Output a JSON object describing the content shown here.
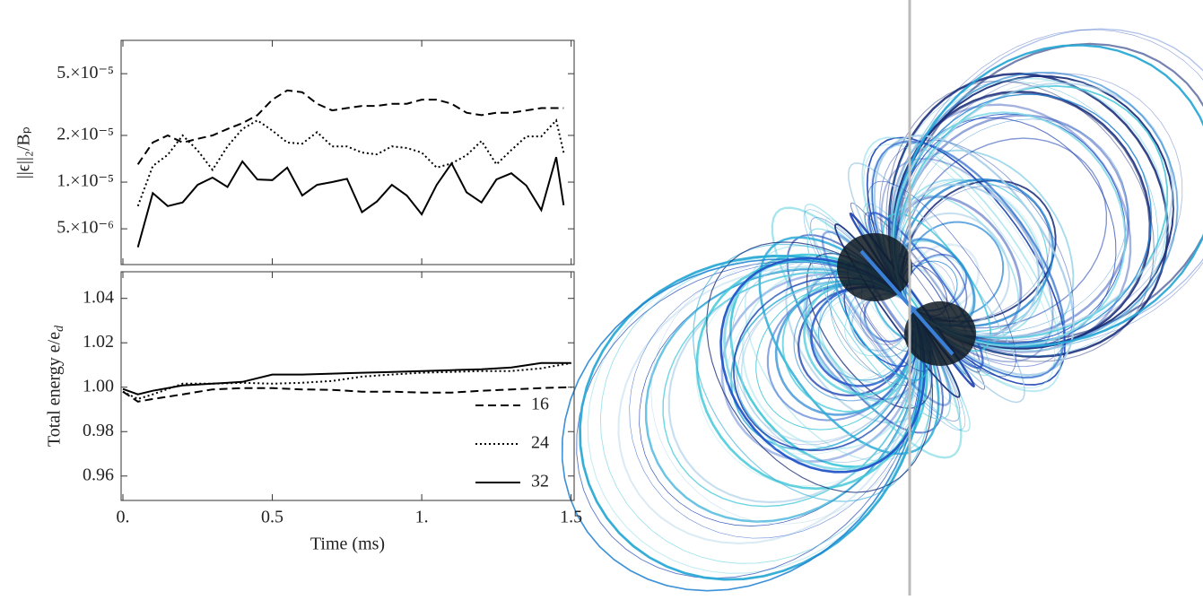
{
  "chart_data": [
    {
      "type": "line",
      "log_y": true,
      "y_label": "||ϵ||₂/Bₚ",
      "x": [
        0.05,
        0.1,
        0.15,
        0.2,
        0.25,
        0.3,
        0.35,
        0.4,
        0.45,
        0.5,
        0.55,
        0.6,
        0.65,
        0.7,
        0.75,
        0.8,
        0.85,
        0.9,
        0.95,
        1.0,
        1.05,
        1.1,
        1.15,
        1.2,
        1.25,
        1.3,
        1.35,
        1.4,
        1.45,
        1.475
      ],
      "xlim": [
        -0.006,
        1.51
      ],
      "ylim": [
        2.94e-06,
        8.2e-05
      ],
      "yticks": [
        {
          "value": 5e-06,
          "label": "5.×10⁻⁶"
        },
        {
          "value": 1e-05,
          "label": "1.×10⁻⁵"
        },
        {
          "value": 2e-05,
          "label": "2.×10⁻⁵"
        },
        {
          "value": 5e-05,
          "label": "5.×10⁻⁵"
        }
      ],
      "series": [
        {
          "dash": "dashed",
          "color": "#000000",
          "values": [
            1.3e-05,
            1.8e-05,
            2e-05,
            1.8e-05,
            1.9e-05,
            2e-05,
            2.2e-05,
            2.4e-05,
            2.7e-05,
            3.4e-05,
            3.9e-05,
            3.8e-05,
            3.2e-05,
            2.9e-05,
            3e-05,
            3.1e-05,
            3.1e-05,
            3.2e-05,
            3.2e-05,
            3.4e-05,
            3.4e-05,
            3.2e-05,
            2.8e-05,
            2.7e-05,
            2.8e-05,
            2.8e-05,
            2.9e-05,
            3e-05,
            3e-05,
            3e-05
          ]
        },
        {
          "dash": "dotted",
          "color": "#000000",
          "values": [
            7e-06,
            1.27e-05,
            1.5e-05,
            2e-05,
            1.6e-05,
            1.2e-05,
            1.7e-05,
            2.2e-05,
            2.5e-05,
            2.15e-05,
            1.8e-05,
            1.77e-05,
            2.1e-05,
            1.7e-05,
            1.7e-05,
            1.55e-05,
            1.51e-05,
            1.7e-05,
            1.66e-05,
            1.55e-05,
            1.24e-05,
            1.32e-05,
            1.49e-05,
            1.84e-05,
            1.3e-05,
            1.61e-05,
            1.97e-05,
            1.97e-05,
            2.5e-05,
            1.55e-05
          ]
        },
        {
          "dash": "solid",
          "color": "#000000",
          "values": [
            3.8e-06,
            8.5e-06,
            7e-06,
            7.4e-06,
            9.6e-06,
            1.07e-05,
            9.3e-06,
            1.36e-05,
            1.04e-05,
            1.03e-05,
            1.24e-05,
            8.2e-06,
            9.6e-06,
            1e-05,
            1.05e-05,
            6.4e-06,
            7.5e-06,
            9.6e-06,
            8.2e-06,
            6.2e-06,
            9.6e-06,
            1.32e-05,
            8.6e-06,
            7.4e-06,
            1.04e-05,
            1.14e-05,
            9.5e-06,
            6.6e-06,
            1.45e-05,
            7.1e-06
          ]
        }
      ]
    },
    {
      "type": "line",
      "log_y": false,
      "y_label": "Total energy e/e_d",
      "x_label": "Time (ms)",
      "legend": "lower right",
      "x": [
        0,
        0.05,
        0.1,
        0.2,
        0.3,
        0.4,
        0.5,
        0.6,
        0.7,
        0.8,
        0.9,
        1.0,
        1.1,
        1.2,
        1.3,
        1.4,
        1.5
      ],
      "xlim": [
        -0.006,
        1.51
      ],
      "xticks": [
        {
          "value": 0,
          "label": "0."
        },
        0.5,
        {
          "value": 1,
          "label": "1."
        },
        1.5
      ],
      "ylim": [
        0.949,
        1.052
      ],
      "yticks": [
        0.96,
        0.98,
        {
          "value": 1,
          "label": "1.00"
        },
        1.02,
        1.04
      ],
      "series": [
        {
          "name": "16",
          "dash": "dashed",
          "color": "#000000",
          "values": [
            0.998,
            0.9935,
            0.9947,
            0.9968,
            0.999,
            0.9996,
            0.9996,
            0.999,
            0.9988,
            0.998,
            0.998,
            0.9976,
            0.9976,
            0.9984,
            0.999,
            0.9996,
            1.0
          ]
        },
        {
          "name": "24",
          "dash": "dotted",
          "color": "#000000",
          "values": [
            0.998,
            0.9947,
            0.9968,
            1.0016,
            1.0016,
            1.002,
            1.0016,
            1.002,
            1.0028,
            1.0048,
            1.0057,
            1.0065,
            1.0069,
            1.0073,
            1.0073,
            1.0085,
            1.0109
          ]
        },
        {
          "name": "32",
          "dash": "solid",
          "color": "#000000",
          "values": [
            0.9992,
            0.9968,
            0.9984,
            1.0008,
            1.0016,
            1.0024,
            1.0057,
            1.0057,
            1.0061,
            1.0065,
            1.0069,
            1.0073,
            1.0077,
            1.0081,
            1.0089,
            1.0109,
            1.0109
          ]
        }
      ]
    }
  ]
}
